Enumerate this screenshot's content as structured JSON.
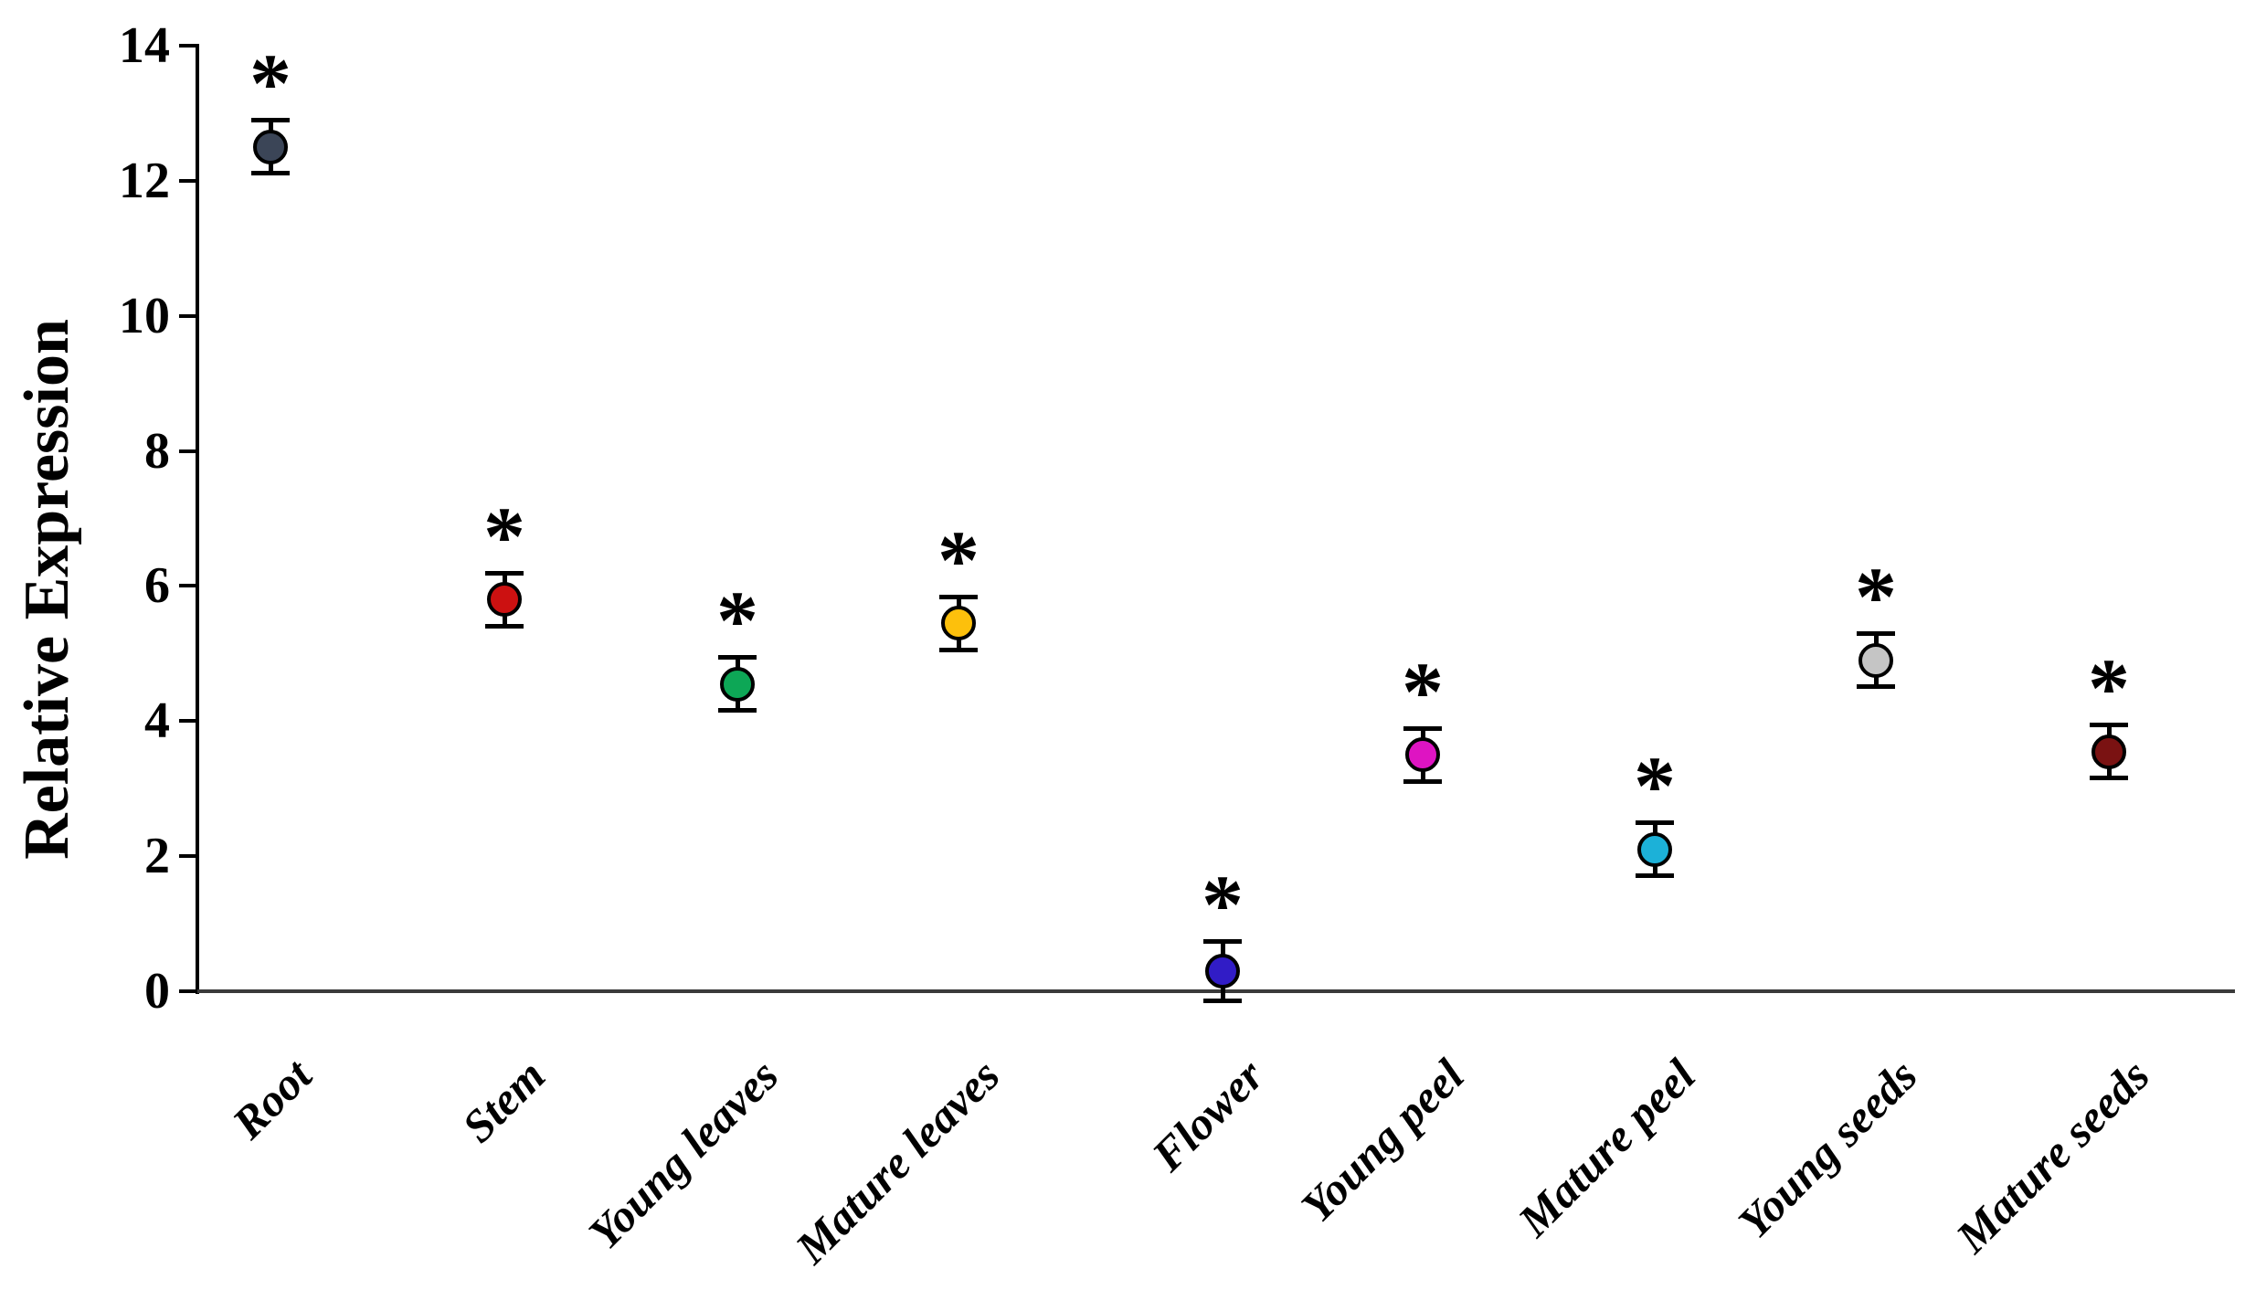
{
  "chart_data": {
    "type": "scatter",
    "title": "",
    "xlabel": "",
    "ylabel": "Relative Expression",
    "ylim": [
      0,
      14
    ],
    "ytick_step": 2,
    "yticks": [
      "0",
      "2",
      "4",
      "6",
      "8",
      "10",
      "12",
      "14"
    ],
    "grid": false,
    "legend": "none",
    "marker_outline_color": "#000000",
    "categories": [
      "Root",
      "Stem",
      "Young leaves",
      "Mature leaves",
      "Flower",
      "Young peel",
      "Mature peel",
      "Young seeds",
      "Mature seeds"
    ],
    "series": [
      {
        "name": "Relative Expression",
        "values": [
          12.5,
          5.8,
          4.55,
          5.45,
          0.3,
          3.5,
          2.1,
          4.9,
          3.55
        ],
        "errors": [
          0.4,
          0.4,
          0.4,
          0.4,
          0.45,
          0.4,
          0.4,
          0.4,
          0.4
        ],
        "point_colors": [
          "#3b4557",
          "#cc1111",
          "#0da756",
          "#fdc00c",
          "#311cc6",
          "#de14c2",
          "#1cb1d8",
          "#c5c5c5",
          "#7a1212"
        ],
        "significance": [
          "*",
          "*",
          "*",
          "*",
          "*",
          "*",
          "*",
          "*",
          "*"
        ]
      }
    ]
  }
}
